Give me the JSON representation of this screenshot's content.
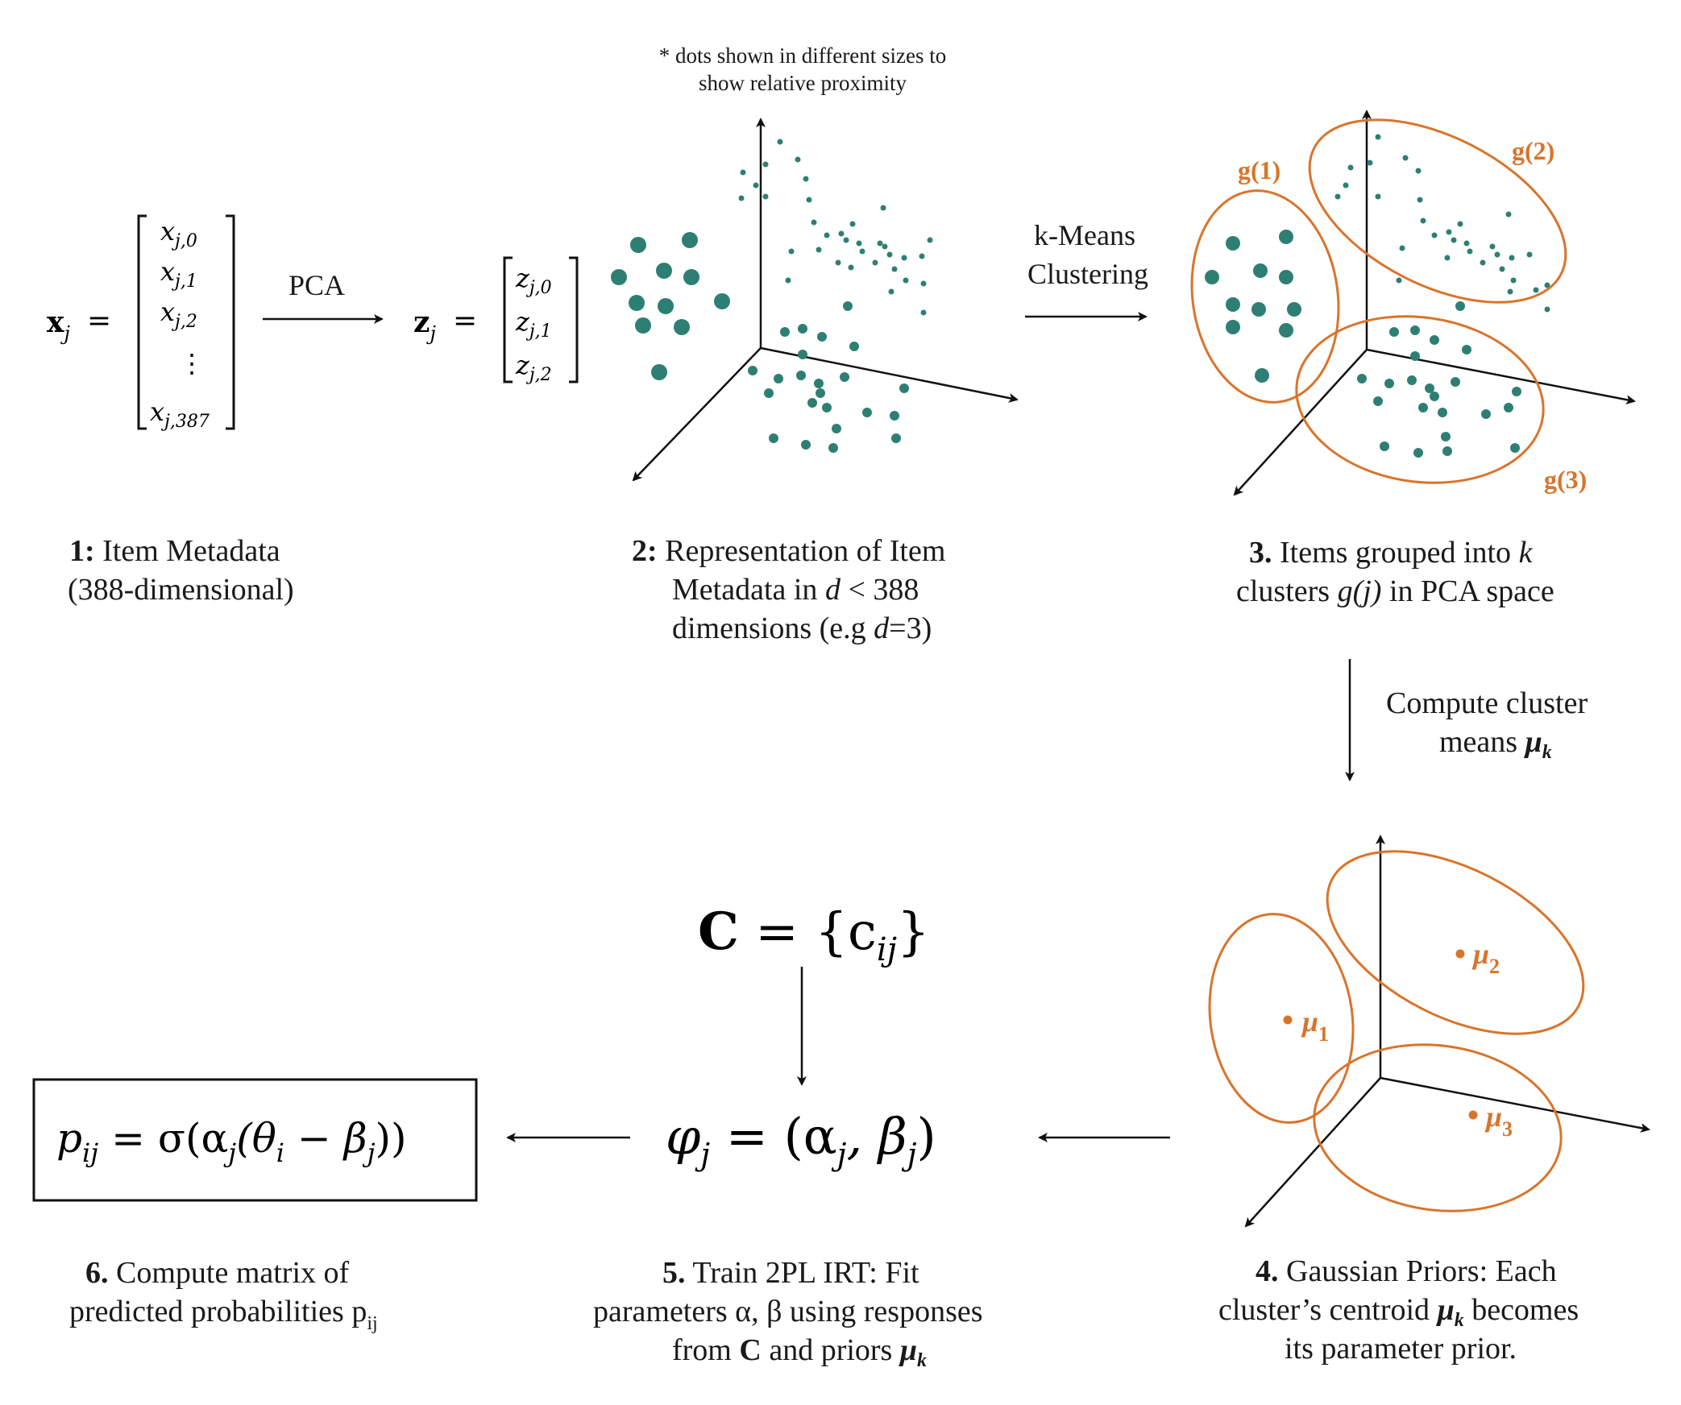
{
  "colors": {
    "teal": "#2E7F73",
    "orange": "#D9742B",
    "ink": "#1a1a1a"
  },
  "step1": {
    "lhs_bold": "x",
    "lhs_sub": "j",
    "equals": "=",
    "entries": [
      {
        "base": "x",
        "sub": "j,0"
      },
      {
        "base": "x",
        "sub": "j,1"
      },
      {
        "base": "x",
        "sub": "j,2"
      },
      {
        "base": "⋮",
        "sub": ""
      },
      {
        "base": "x",
        "sub": "j,387"
      }
    ],
    "caption_num": "1:",
    "caption_line1": "Item Metadata",
    "caption_line2": "(388-dimensional)"
  },
  "pca_label": "PCA",
  "step2_vector": {
    "lhs_bold": "z",
    "lhs_sub": "j",
    "equals": "=",
    "entries": [
      {
        "base": "z",
        "sub": "j,0"
      },
      {
        "base": "z",
        "sub": "j,1"
      },
      {
        "base": "z",
        "sub": "j,2"
      }
    ]
  },
  "note": {
    "line1": "* dots shown in different sizes to",
    "line2": "show relative proximity"
  },
  "step2": {
    "caption_num": "2:",
    "caption_line1": "Representation of Item",
    "caption_line2_pre": "Metadata in ",
    "caption_line2_var": "d",
    "caption_line2_post": " < 388",
    "caption_line3_pre": "dimensions (e.g ",
    "caption_line3_var": "d",
    "caption_line3_post": "=3)"
  },
  "kmeans": {
    "line1": "k-Means",
    "line2": "Clustering"
  },
  "step3": {
    "cluster_labels": [
      "g(1)",
      "g(2)",
      "g(3)"
    ],
    "caption_num": "3.",
    "caption_line1_pre": "Items grouped into ",
    "caption_line1_var": "k",
    "caption_line2_pre": "clusters ",
    "caption_line2_var": "g(j)",
    "caption_line2_post": " in PCA space"
  },
  "compute_means": {
    "line1": "Compute cluster",
    "line2_pre": "means ",
    "line2_mu": "μ",
    "line2_sub": "k"
  },
  "step4": {
    "mu_symbol": "μ",
    "mu_subs": [
      "1",
      "2",
      "3"
    ],
    "caption_num": "4.",
    "caption_line1": "Gaussian Priors: Each",
    "caption_line2_pre": "cluster’s centroid ",
    "caption_line2_mu": "μ",
    "caption_line2_sub": "k",
    "caption_line2_post": " becomes",
    "caption_line3": "its parameter prior."
  },
  "c_matrix": {
    "bold": "C",
    "rest": " = {c",
    "sub": "ij",
    "close": "}"
  },
  "phi": {
    "phi": "φ",
    "phi_sub": "j",
    "eq": " = (α",
    "a_sub": "j",
    "comma": ", β",
    "b_sub": "j",
    "close": ")"
  },
  "step5": {
    "caption_num": "5.",
    "caption_line1": "Train 2PL IRT: Fit",
    "caption_line2": "parameters α, β using responses",
    "caption_line3_pre": "from ",
    "caption_line3_bold": "C",
    "caption_line3_mid": " and priors ",
    "caption_line3_mu": "μ",
    "caption_line3_sub": "k"
  },
  "formula": {
    "p": "p",
    "p_sub": "ij",
    "eq": " = σ(α",
    "a_sub": "j",
    "mid": "(θ",
    "t_sub": "i",
    "minus": " − β",
    "b_sub": "j",
    "close": "))"
  },
  "step6": {
    "caption_num": "6.",
    "caption_line1": "Compute matrix of",
    "caption_line2_pre": "predicted probabilities p",
    "caption_line2_sub": "ij"
  }
}
